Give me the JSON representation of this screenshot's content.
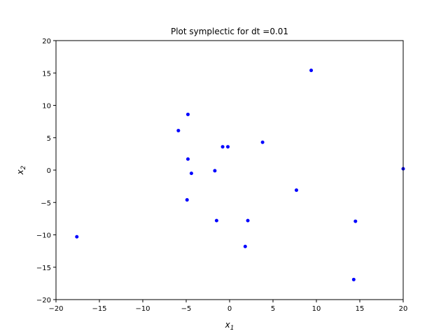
{
  "chart_data": {
    "type": "scatter",
    "title": "Plot symplectic for dt =0.01",
    "xlabel": {
      "base": "x",
      "sub": "1"
    },
    "ylabel": {
      "base": "x",
      "sub": "2"
    },
    "xlim": [
      -20,
      20
    ],
    "ylim": [
      -20,
      20
    ],
    "xticks": [
      -20,
      -15,
      -10,
      -5,
      0,
      5,
      10,
      15,
      20
    ],
    "yticks": [
      -20,
      -15,
      -10,
      -5,
      0,
      5,
      10,
      15,
      20
    ],
    "xtick_labels": [
      "−20",
      "−15",
      "−10",
      "−5",
      "0",
      "5",
      "10",
      "15",
      "20"
    ],
    "ytick_labels": [
      "−20",
      "−15",
      "−10",
      "−5",
      "0",
      "5",
      "10",
      "15",
      "20"
    ],
    "grid": false,
    "marker_color": "#0000ff",
    "points": [
      {
        "x": -17.6,
        "y": -10.3
      },
      {
        "x": -5.9,
        "y": 6.1
      },
      {
        "x": -4.8,
        "y": 8.6
      },
      {
        "x": -4.8,
        "y": 1.7
      },
      {
        "x": -4.4,
        "y": -0.5
      },
      {
        "x": -4.9,
        "y": -4.6
      },
      {
        "x": -1.7,
        "y": -0.1
      },
      {
        "x": -1.5,
        "y": -7.8
      },
      {
        "x": -0.8,
        "y": 3.6
      },
      {
        "x": -0.2,
        "y": 3.6
      },
      {
        "x": 1.8,
        "y": -11.8
      },
      {
        "x": 2.1,
        "y": -7.8
      },
      {
        "x": 3.8,
        "y": 4.3
      },
      {
        "x": 7.7,
        "y": -3.1
      },
      {
        "x": 9.4,
        "y": 15.4
      },
      {
        "x": 14.3,
        "y": -16.9
      },
      {
        "x": 14.5,
        "y": -7.9
      },
      {
        "x": 20.0,
        "y": 0.2
      }
    ]
  }
}
